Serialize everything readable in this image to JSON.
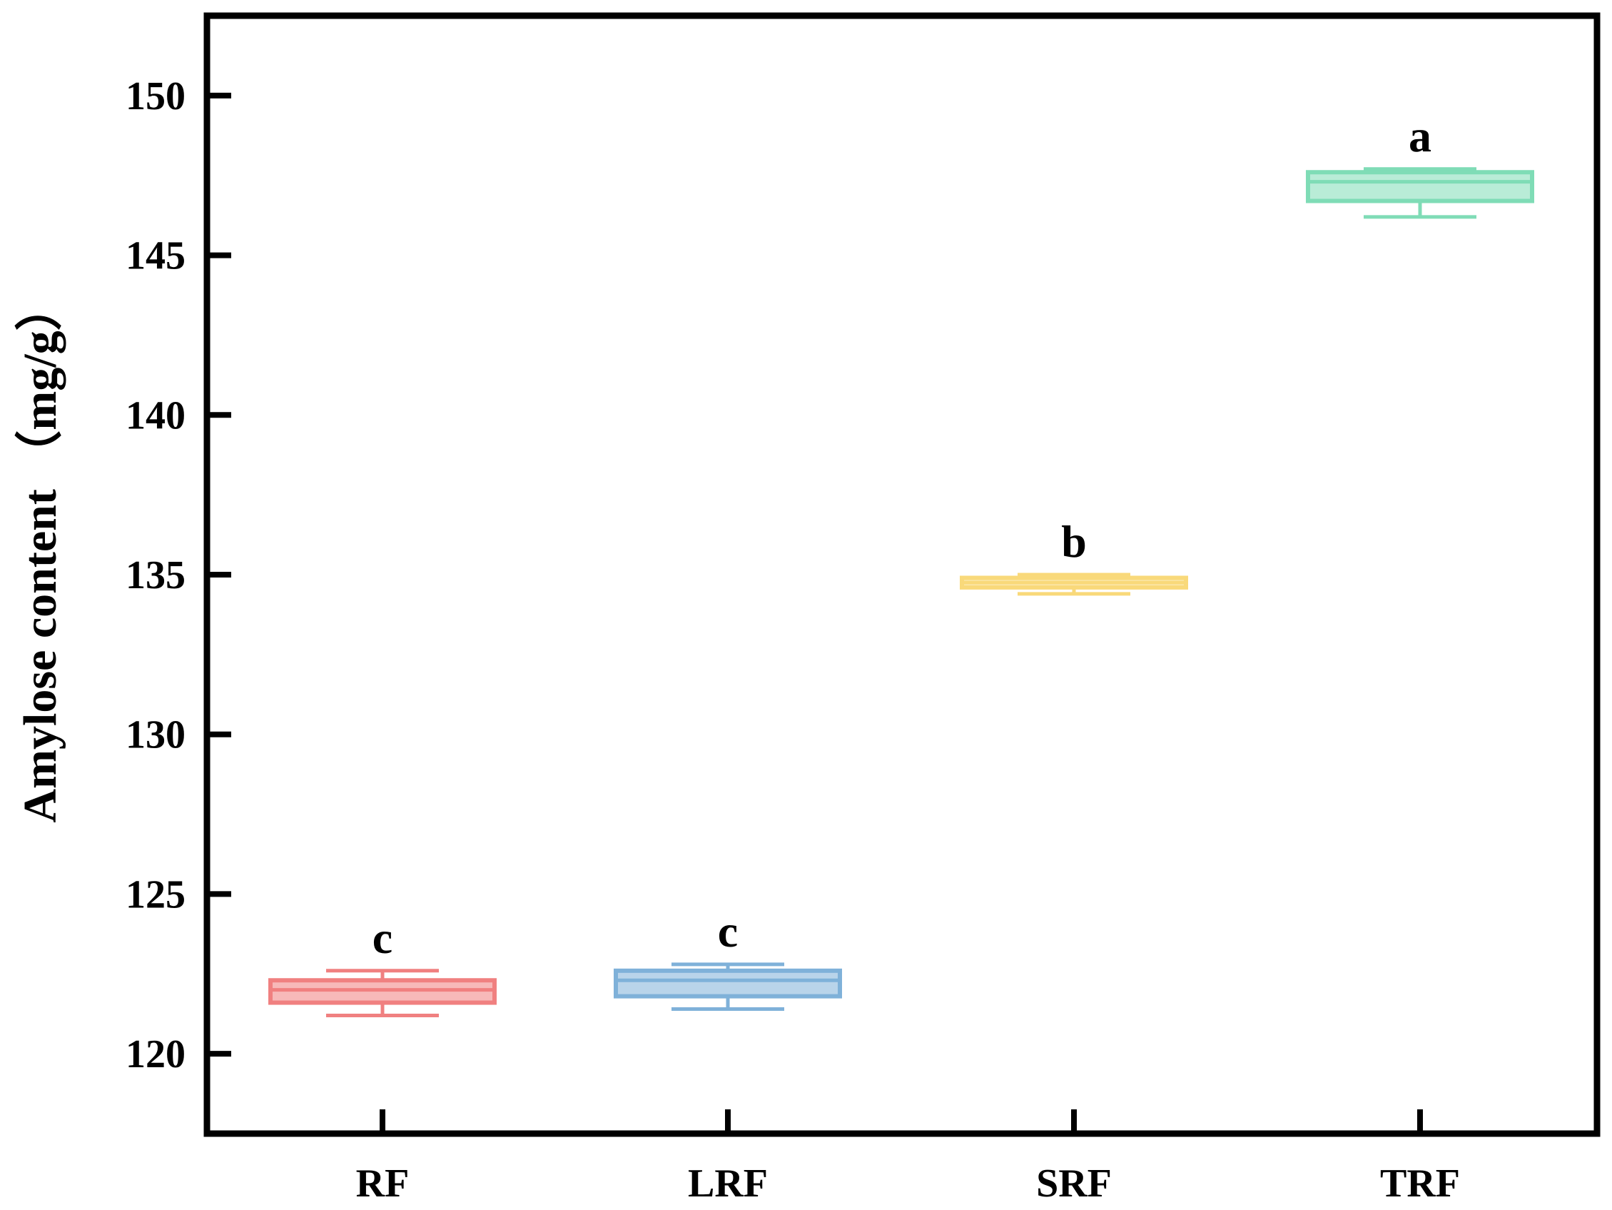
{
  "chart_data": {
    "type": "box",
    "title": "",
    "xlabel": "",
    "ylabel": "Amylose content （mg/g）",
    "ylim": [
      117.5,
      152.5
    ],
    "yticks": [
      120,
      125,
      130,
      135,
      140,
      145,
      150
    ],
    "grid": false,
    "legend": "none",
    "categories": [
      "RF",
      "LRF",
      "SRF",
      "TRF"
    ],
    "boxes": [
      {
        "category": "RF",
        "min": 121.2,
        "q1": 121.6,
        "median": 122.0,
        "q3": 122.3,
        "max": 122.6,
        "letter": "c",
        "color": "#f08080"
      },
      {
        "category": "LRF",
        "min": 121.4,
        "q1": 121.8,
        "median": 122.3,
        "q3": 122.6,
        "max": 122.8,
        "letter": "c",
        "color": "#7fb1d9"
      },
      {
        "category": "SRF",
        "min": 134.4,
        "q1": 134.6,
        "median": 134.75,
        "q3": 134.9,
        "max": 135.0,
        "letter": "b",
        "color": "#f9d97a"
      },
      {
        "category": "TRF",
        "min": 146.2,
        "q1": 146.7,
        "median": 147.3,
        "q3": 147.6,
        "max": 147.7,
        "letter": "a",
        "color": "#7fdcb6"
      }
    ]
  }
}
